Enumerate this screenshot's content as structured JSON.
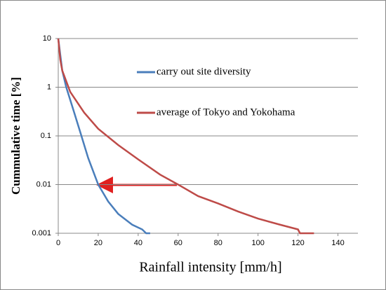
{
  "chart_data": {
    "type": "line",
    "x_label": "Rainfall intensity [mm/h]",
    "y_label": "Cummulative time  [%]",
    "xlim": [
      0,
      150
    ],
    "xticks": [
      0,
      20,
      40,
      60,
      80,
      100,
      120,
      140
    ],
    "ylim": [
      0.001,
      10
    ],
    "yticks": [
      10,
      1,
      0.1,
      0.01,
      0.001
    ],
    "log_y": true,
    "grid": true,
    "legend": "upper right",
    "series": [
      {
        "name": "carry out site diversity",
        "color": "#4a7ebb",
        "x": [
          0,
          2,
          4,
          8,
          11,
          15,
          20,
          25,
          30,
          37,
          42,
          44,
          46
        ],
        "values": [
          10,
          2.2,
          1,
          0.3,
          0.12,
          0.035,
          0.01,
          0.0045,
          0.0025,
          0.0015,
          0.0012,
          0.001,
          0.001
        ]
      },
      {
        "name": "average of Tokyo and Yokohama",
        "color": "#be4b48",
        "x": [
          0,
          1,
          2,
          6,
          13,
          20,
          30,
          40,
          51,
          60,
          70,
          80,
          90,
          100,
          111,
          120,
          121,
          128
        ],
        "values": [
          10,
          3.7,
          2.2,
          0.8,
          0.3,
          0.14,
          0.065,
          0.033,
          0.016,
          0.01,
          0.0058,
          0.0041,
          0.0028,
          0.002,
          0.0015,
          0.0012,
          0.001,
          0.001
        ]
      }
    ]
  }
}
